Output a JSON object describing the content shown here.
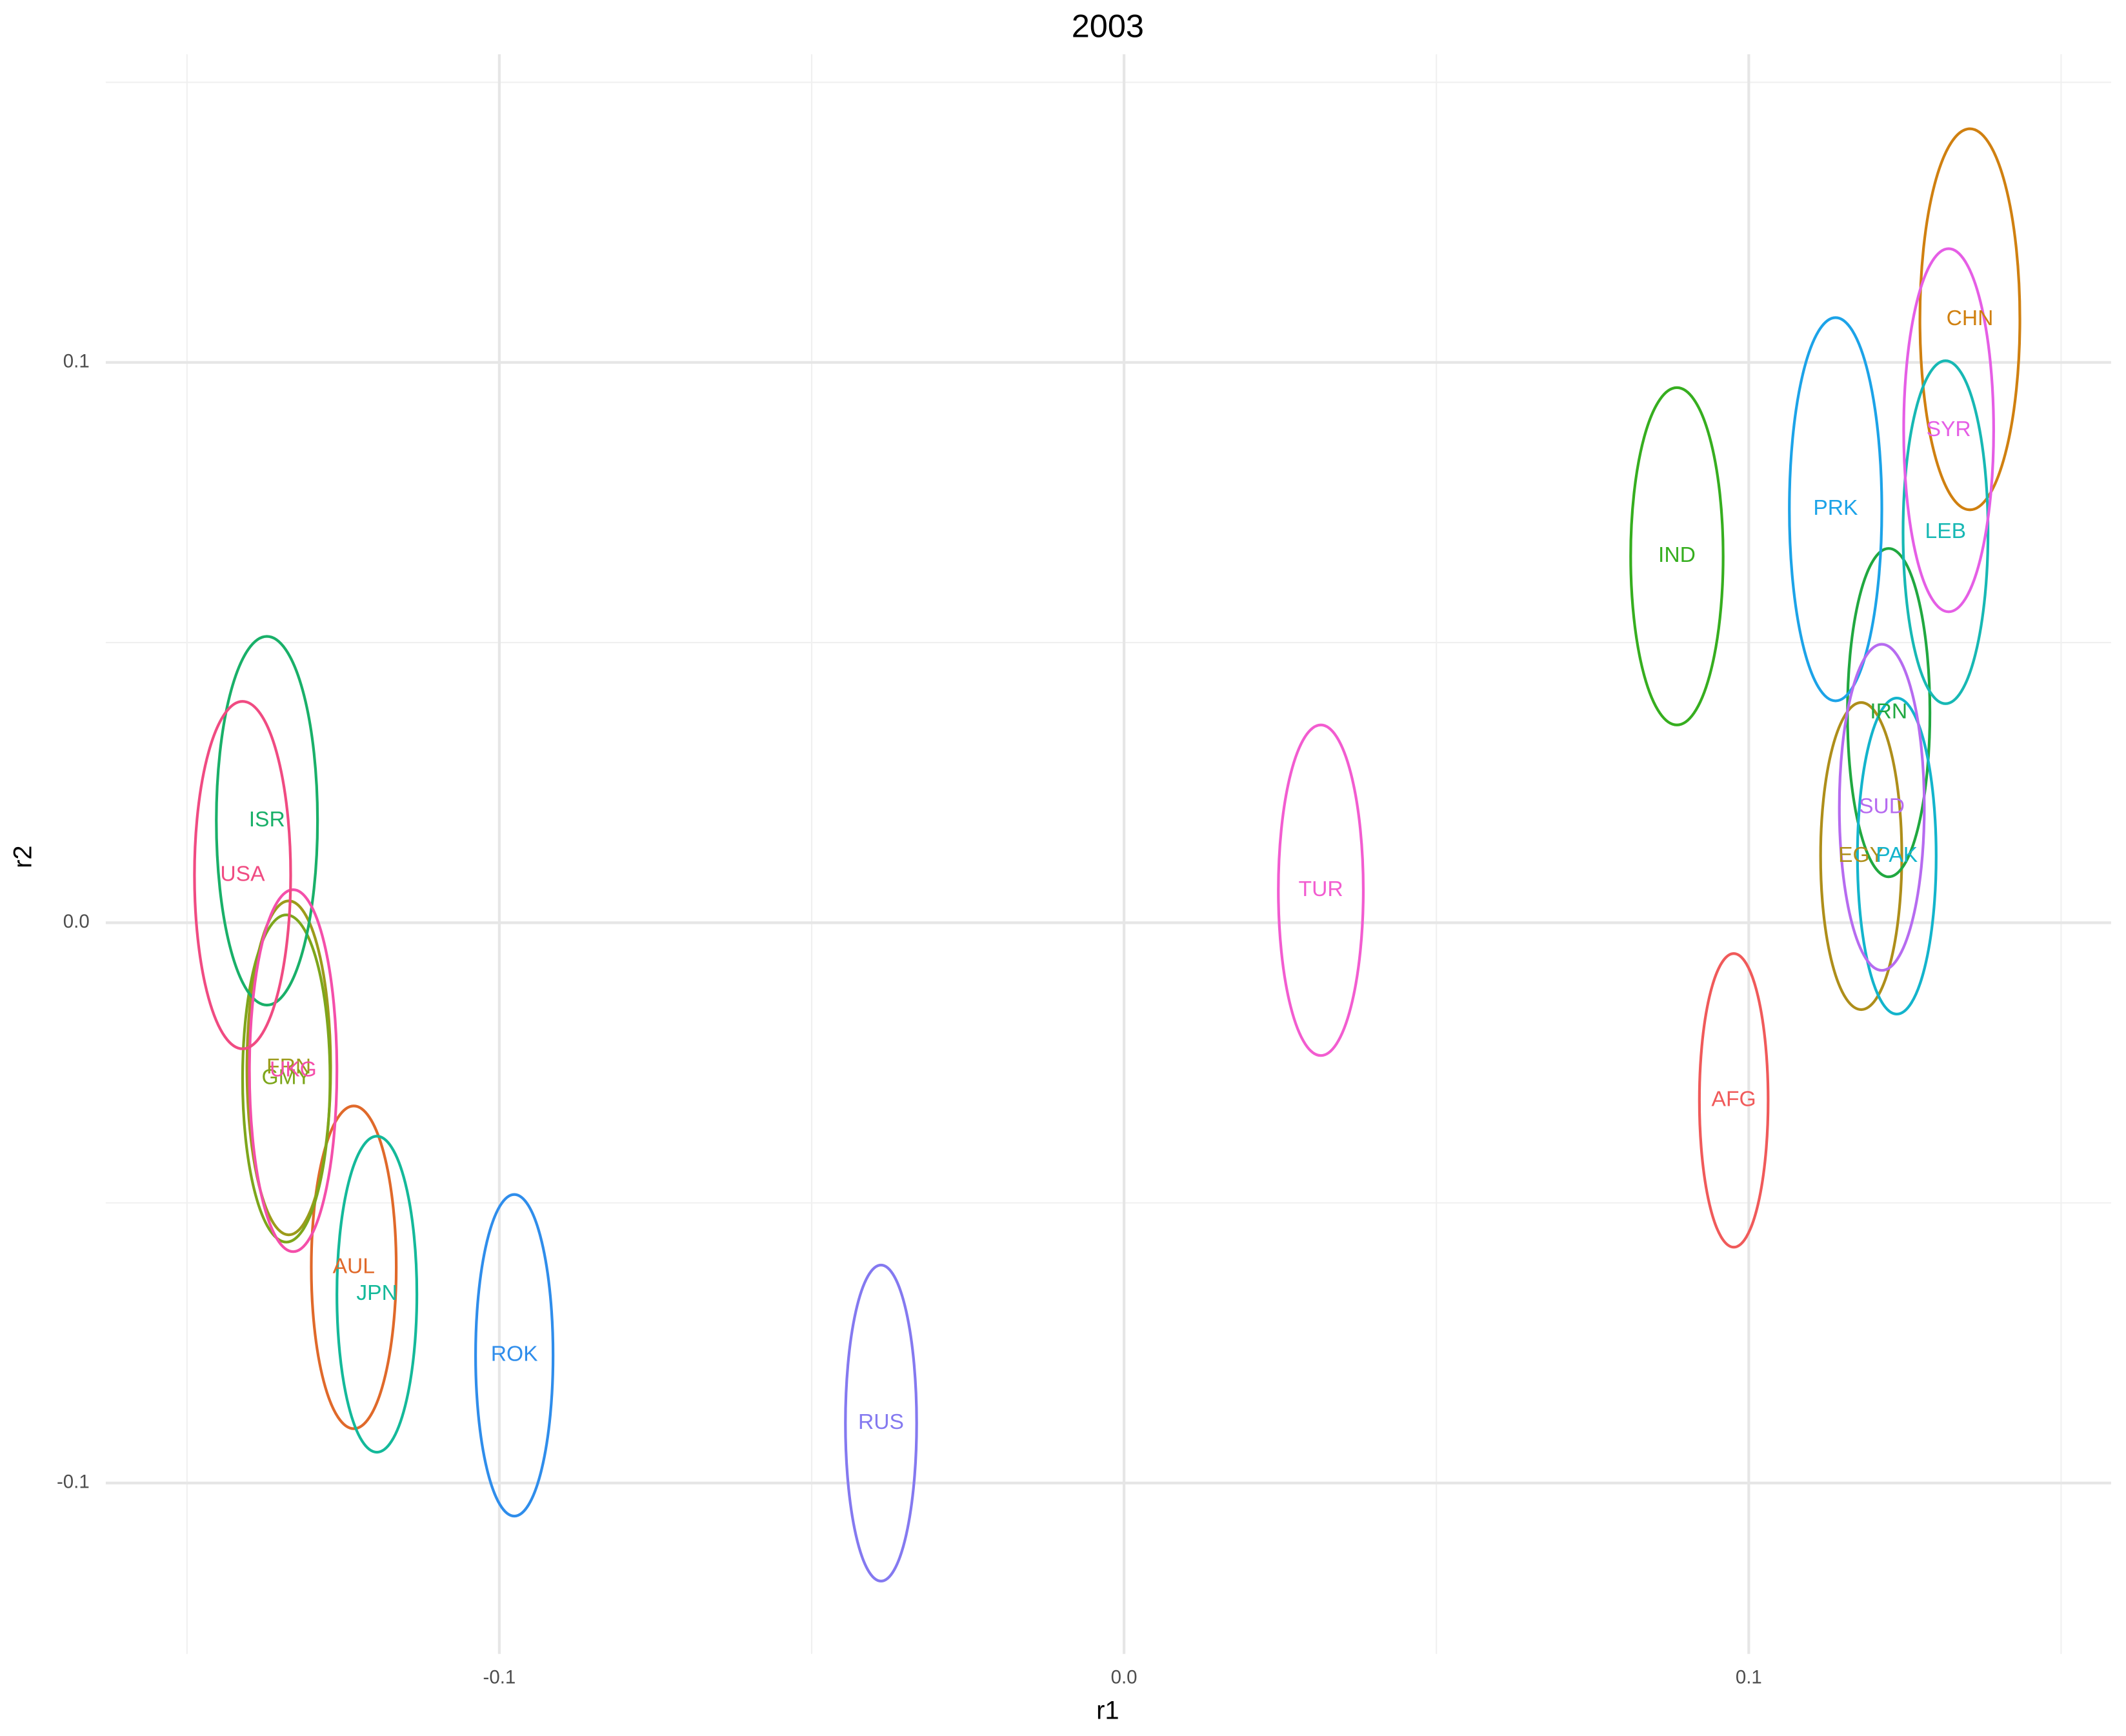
{
  "chart_data": {
    "type": "ellipse-scatter",
    "title": "2003",
    "x_label": "r1",
    "y_label": "r2",
    "xlim": [
      -0.163,
      0.158
    ],
    "ylim": [
      -0.1305,
      0.155
    ],
    "xticks": [
      -0.1,
      {
        "value": 0,
        "label": "0.0"
      },
      0.1
    ],
    "yticks": [
      -0.1,
      {
        "value": 0,
        "label": "0.0"
      },
      0.1
    ],
    "xminor": [
      -0.15,
      -0.05,
      0.05,
      0.15
    ],
    "yminor": [
      -0.05,
      0.05,
      0.15
    ],
    "grid": true,
    "series": [
      {
        "name": "AFG",
        "color": "#F05A5A",
        "x": 0.0976,
        "y": -0.0317,
        "rx": 0.0055,
        "ry": 0.0262
      },
      {
        "name": "AUL",
        "color": "#E0692A",
        "x": -0.1233,
        "y": -0.0615,
        "rx": 0.0068,
        "ry": 0.0288
      },
      {
        "name": "CHN",
        "color": "#D08010",
        "x": 0.1354,
        "y": 0.1077,
        "rx": 0.008,
        "ry": 0.034
      },
      {
        "name": "EGY",
        "color": "#AE8E1A",
        "x": 0.118,
        "y": 0.0119,
        "rx": 0.0065,
        "ry": 0.0274
      },
      {
        "name": "FRN",
        "color": "#9C9B1A",
        "x": -0.1337,
        "y": -0.0259,
        "rx": 0.0067,
        "ry": 0.0298
      },
      {
        "name": "GMY",
        "color": "#7DA61B",
        "x": -0.1341,
        "y": -0.0278,
        "rx": 0.007,
        "ry": 0.0292
      },
      {
        "name": "IND",
        "color": "#36AE1F",
        "x": 0.0885,
        "y": 0.0654,
        "rx": 0.0074,
        "ry": 0.0301
      },
      {
        "name": "IRN",
        "color": "#20A840",
        "x": 0.1224,
        "y": 0.0375,
        "rx": 0.0066,
        "ry": 0.0293
      },
      {
        "name": "ISR",
        "color": "#19B069",
        "x": -0.1372,
        "y": 0.0182,
        "rx": 0.0081,
        "ry": 0.0329
      },
      {
        "name": "JPN",
        "color": "#14B99A",
        "x": -0.1196,
        "y": -0.0663,
        "rx": 0.0064,
        "ry": 0.0282
      },
      {
        "name": "LEB",
        "color": "#17B8B4",
        "x": 0.1315,
        "y": 0.0697,
        "rx": 0.0068,
        "ry": 0.0306
      },
      {
        "name": "PAK",
        "color": "#13B4CC",
        "x": 0.1237,
        "y": 0.0119,
        "rx": 0.0063,
        "ry": 0.0282
      },
      {
        "name": "PRK",
        "color": "#1CA3E8",
        "x": 0.1139,
        "y": 0.0738,
        "rx": 0.0074,
        "ry": 0.0342
      },
      {
        "name": "ROK",
        "color": "#2F8DEB",
        "x": -0.0976,
        "y": -0.0772,
        "rx": 0.0062,
        "ry": 0.0287
      },
      {
        "name": "RUS",
        "color": "#8479F0",
        "x": -0.0389,
        "y": -0.0893,
        "rx": 0.0057,
        "ry": 0.0282
      },
      {
        "name": "SUD",
        "color": "#B66BF0",
        "x": 0.1213,
        "y": 0.0206,
        "rx": 0.0068,
        "ry": 0.0291
      },
      {
        "name": "SYR",
        "color": "#E55EE5",
        "x": 0.132,
        "y": 0.0879,
        "rx": 0.0072,
        "ry": 0.0324
      },
      {
        "name": "TUR",
        "color": "#F25CD0",
        "x": 0.0315,
        "y": 0.0058,
        "rx": 0.0068,
        "ry": 0.0295
      },
      {
        "name": "UKG",
        "color": "#F44FAA",
        "x": -0.133,
        "y": -0.0264,
        "rx": 0.007,
        "ry": 0.0323
      },
      {
        "name": "USA",
        "color": "#F04B82",
        "x": -0.1411,
        "y": 0.0085,
        "rx": 0.0077,
        "ry": 0.031
      }
    ]
  }
}
